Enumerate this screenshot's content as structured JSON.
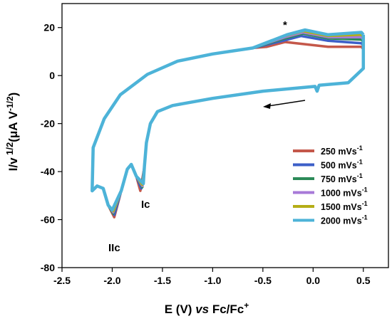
{
  "chart_data": {
    "type": "line",
    "title": "",
    "xlabel_parts": [
      "E (V) ",
      "vs",
      " Fc/Fc",
      "+"
    ],
    "ylabel_parts": [
      "I/v",
      " 1/2",
      "(μA V",
      "-1/2",
      ")"
    ],
    "xlim": [
      -2.5,
      0.75
    ],
    "ylim": [
      -80,
      30
    ],
    "x_ticks": [
      -2.5,
      -2.0,
      -1.5,
      -1.0,
      -0.5,
      0.0,
      0.5
    ],
    "x_tick_labels": [
      "-2.5",
      "-2.0",
      "-1.5",
      "-1.0",
      "-0.5",
      "0.0",
      "0.5"
    ],
    "y_ticks": [
      -80,
      -60,
      -40,
      -20,
      0,
      20
    ],
    "y_tick_labels": [
      "-80",
      "-60",
      "-40",
      "-20",
      "0",
      "20"
    ],
    "grid": false,
    "legend_position": "right",
    "annotations": [
      {
        "text": "Ic",
        "x": -1.65,
        "y": -53
      },
      {
        "text": "IIc",
        "x": -1.98,
        "y": -71
      },
      {
        "text": "*",
        "x": -0.25,
        "y": 21
      }
    ],
    "arrow": {
      "from": [
        -0.05,
        -10
      ],
      "to": [
        -0.5,
        -13
      ],
      "meaning": "scan direction"
    },
    "series": [
      {
        "name": "250 mVs",
        "sup": "-1",
        "color": "#c4584a",
        "peak_c1": [
          -1.72,
          -48
        ],
        "peak_c2": [
          -1.98,
          -59
        ],
        "top": [
          -0.28,
          14
        ],
        "end_top": 12
      },
      {
        "name": "500 mVs",
        "sup": "-1",
        "color": "#3c5fc8",
        "peak_c1": [
          -1.71,
          -47
        ],
        "peak_c2": [
          -1.98,
          -58
        ],
        "top": [
          -0.12,
          16.5
        ],
        "end_top": 13.5
      },
      {
        "name": "750 mVs",
        "sup": "-1",
        "color": "#2c8a58",
        "peak_c1": [
          -1.7,
          -46.5
        ],
        "peak_c2": [
          -1.99,
          -57.5
        ],
        "top": [
          -0.1,
          17.5
        ],
        "end_top": 15
      },
      {
        "name": "1000 mVs",
        "sup": "-1",
        "color": "#a77ad8",
        "peak_c1": [
          -1.7,
          -46
        ],
        "peak_c2": [
          -1.99,
          -57
        ],
        "top": [
          -0.1,
          18
        ],
        "end_top": 16
      },
      {
        "name": "1500 mVs",
        "sup": "-1",
        "color": "#b5ad16",
        "peak_c1": [
          -1.7,
          -45.5
        ],
        "peak_c2": [
          -1.99,
          -56.5
        ],
        "top": [
          -0.1,
          18.5
        ],
        "end_top": 17
      },
      {
        "name": "2000 mVs",
        "sup": "-1",
        "color": "#4db3d8",
        "peak_c1": [
          -1.69,
          -45
        ],
        "peak_c2": [
          -2.0,
          -56
        ],
        "top": [
          -0.08,
          19
        ],
        "end_top": 18
      }
    ]
  }
}
